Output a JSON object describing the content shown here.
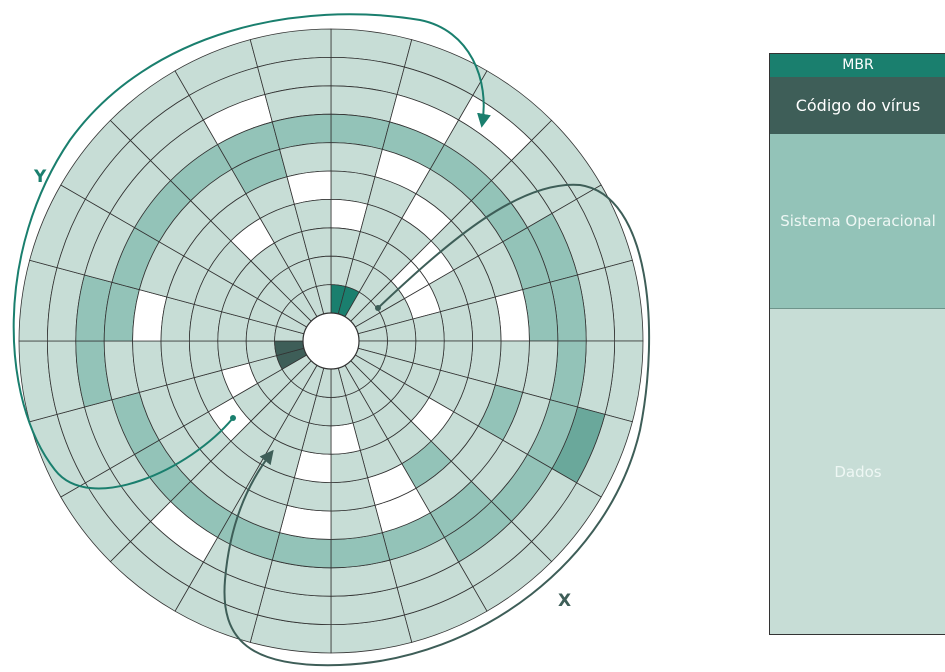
{
  "labels": {
    "y": "Y",
    "x": "X"
  },
  "mbr_panel": {
    "mbr": "MBR",
    "virus_code": "Código do vírus",
    "operating_system": "Sistema Operacional",
    "data": "Dados"
  },
  "colors": {
    "light": "#c7ddd6",
    "medium": "#93c3b8",
    "dark_teal": "#6aa89b",
    "bright_teal": "#1a7f6e",
    "virus": "#3e5e58",
    "white": "#ffffff",
    "arrow_y": "#1a7f6e",
    "arrow_x": "#3e5e58",
    "line": "#333333"
  },
  "disk": {
    "tracks": 10,
    "sectors_per_track": 24,
    "shaded_pattern": [
      "L L L L L L L L L L L L L L L L L L L L L L L L",
      "L L W L L L L D L L L L L L L L L L L L L L L L",
      "L W L L M M M M M M L L L L W L L M M L L L W L",
      "M M M M M M L L L M M M M M M M M L M M M M M M",
      "L W L L L W L M L L W L W L L L L L W L L L M L",
      "L L W L L L L L L M W L L L L L L L L L L L L W",
      "W L L W L L L L W L L L W L L W L L L L L W L L",
      "L L L W W L L L L L L W L L L L W L L L L L L L",
      "L L L L L L L L L L L L L L L L L L L L L L L L",
      "B B L L L L L L L L L L L L L L V V L L L L L L"
    ]
  }
}
